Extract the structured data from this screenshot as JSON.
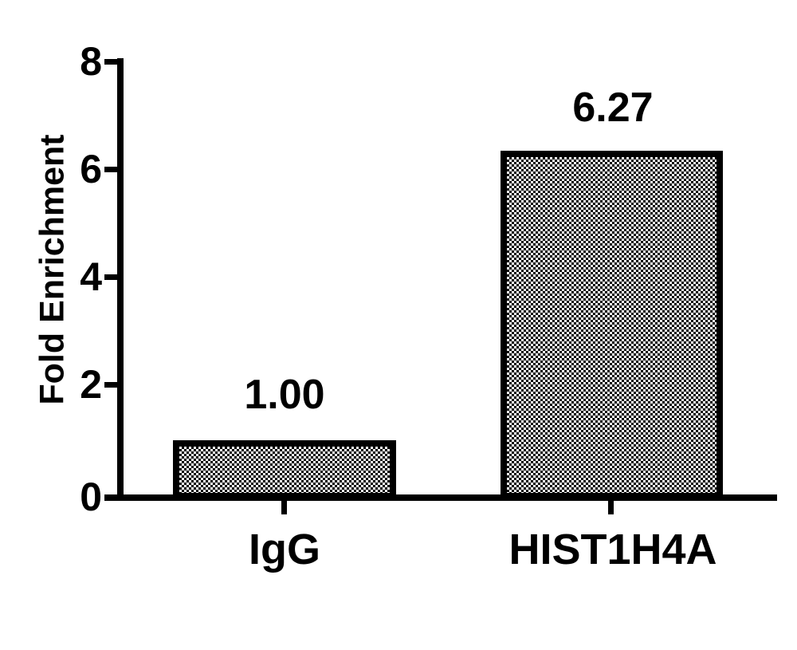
{
  "chart_data": {
    "type": "bar",
    "title": "",
    "xlabel": "",
    "ylabel": "Fold Enrichment",
    "categories": [
      "IgG",
      "HIST1H4A"
    ],
    "values": [
      1.0,
      6.27
    ],
    "value_labels": [
      "1.00",
      "6.27"
    ],
    "ylim": [
      0,
      8
    ],
    "yticks": [
      0,
      2,
      4,
      6,
      8
    ],
    "ytick_labels": [
      "0",
      "2",
      "4",
      "6",
      "8"
    ],
    "grid": false,
    "legend": false,
    "bar_fill": "black-white-checkerboard",
    "colors": {
      "foreground": "#000000",
      "background": "#ffffff"
    }
  }
}
